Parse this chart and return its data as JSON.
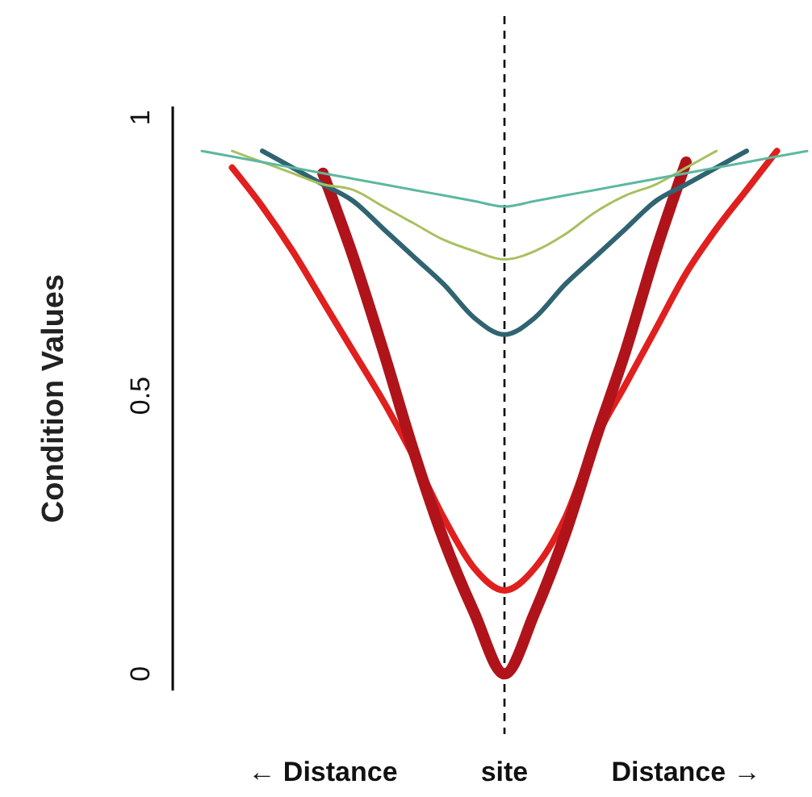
{
  "chart_data": {
    "type": "line",
    "ylabel": "Condition Values",
    "categories": [
      null,
      null,
      null,
      null,
      "← Distance",
      null,
      null,
      null,
      null,
      null,
      "site",
      null,
      null,
      null,
      null,
      null,
      "Distance →",
      null,
      null,
      null,
      null
    ],
    "ylim": [
      -0.03,
      1.02
    ],
    "yticks": [
      0,
      0.5,
      1
    ],
    "grid": false,
    "marker": "none",
    "line_style": "solid",
    "ref_lines": [
      {
        "axis": "x",
        "value": "site",
        "color": "#000000",
        "line_style": "dashed"
      }
    ],
    "series": [
      {
        "color": "#e0201e",
        "values": [
          null,
          0.91,
          0.84,
          0.76,
          0.67,
          0.58,
          0.49,
          0.39,
          0.28,
          0.19,
          0.15,
          0.19,
          0.28,
          0.42,
          0.52,
          0.62,
          0.72,
          0.8,
          0.87,
          0.94,
          null
        ]
      },
      {
        "color": "#b0141a",
        "values": [
          null,
          null,
          null,
          null,
          0.9,
          0.75,
          0.58,
          0.4,
          0.24,
          0.11,
          0,
          0.11,
          0.25,
          0.42,
          0.58,
          0.76,
          0.92,
          null,
          null,
          null,
          null
        ]
      },
      {
        "color": "#2f6470",
        "values": [
          null,
          null,
          0.94,
          0.91,
          0.88,
          0.85,
          0.8,
          0.75,
          0.7,
          0.64,
          0.61,
          0.64,
          0.7,
          0.75,
          0.8,
          0.85,
          0.88,
          0.91,
          0.94,
          null,
          null
        ]
      },
      {
        "color": "#a8c060",
        "values": [
          null,
          0.94,
          0.92,
          0.9,
          0.88,
          0.87,
          0.84,
          0.81,
          0.78,
          0.76,
          0.745,
          0.76,
          0.79,
          0.83,
          0.86,
          0.88,
          0.91,
          0.94,
          null,
          null,
          null
        ]
      },
      {
        "color": "#5cb8a0",
        "values": [
          0.94,
          0.93,
          0.92,
          0.91,
          0.9,
          0.89,
          0.88,
          0.87,
          0.86,
          0.85,
          0.84,
          0.85,
          0.86,
          0.87,
          0.88,
          0.89,
          0.9,
          0.91,
          0.92,
          0.93,
          0.94
        ]
      }
    ]
  }
}
